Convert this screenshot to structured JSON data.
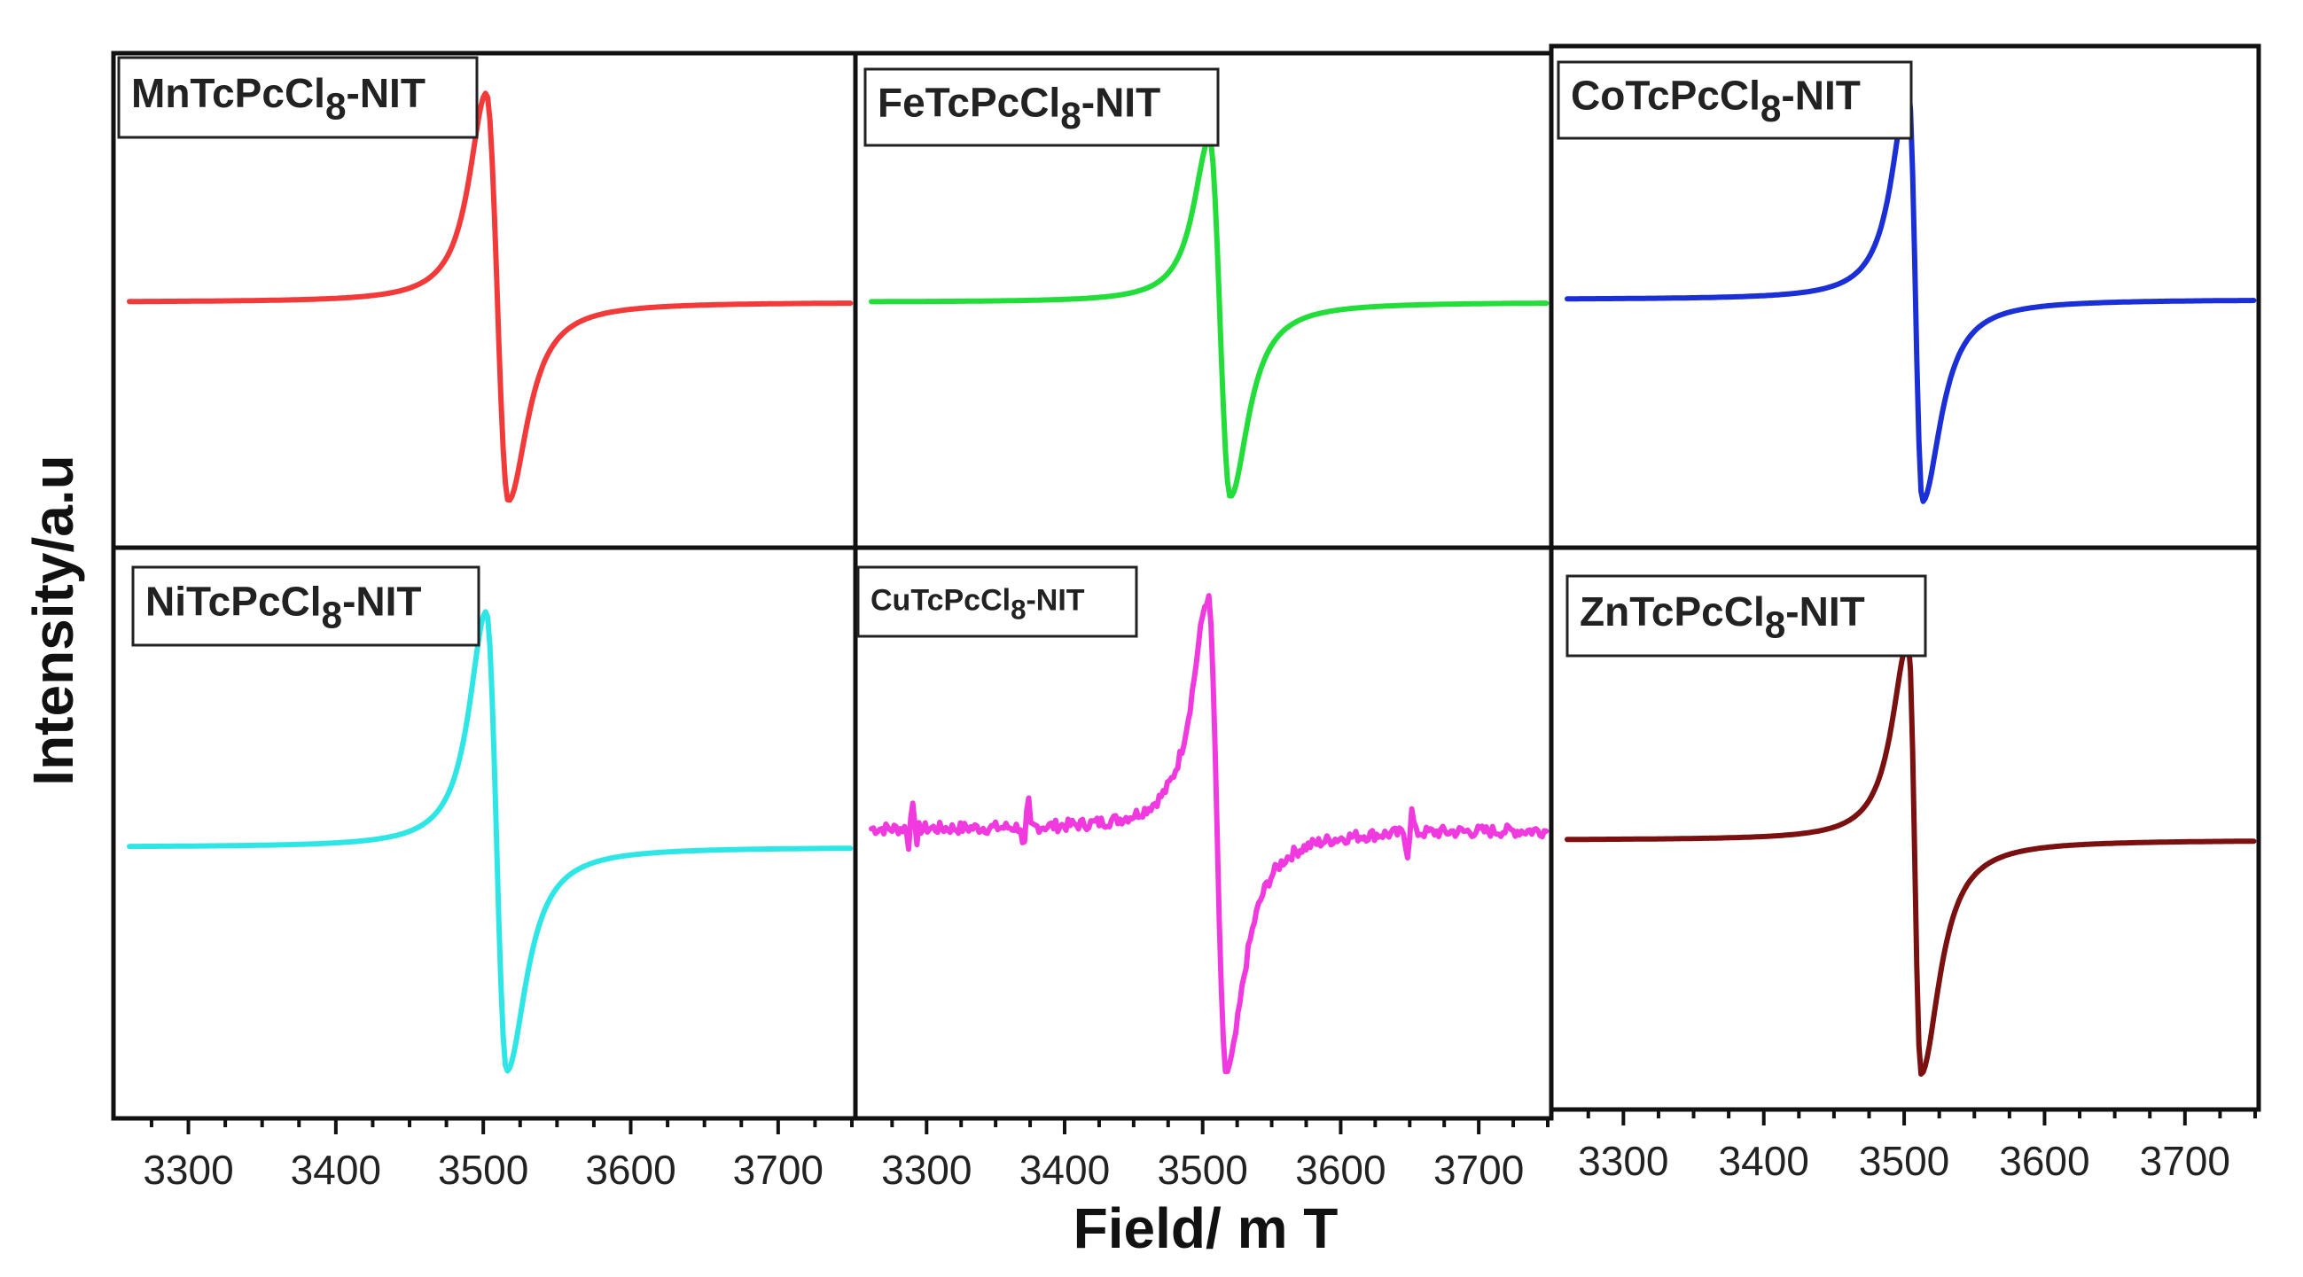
{
  "chart_data": {
    "type": "line",
    "xlabel": "Field/ m T",
    "ylabel": "Intensity/a.u",
    "xlim": [
      3260,
      3750
    ],
    "x_ticks": [
      3300,
      3400,
      3500,
      3600,
      3700
    ],
    "x_tick_labels": [
      "3300",
      "3400",
      "3500",
      "3600",
      "3700"
    ],
    "legend_placement": "top-left in each panel",
    "panels": [
      {
        "name": "Mn",
        "label_main": "MnTcPcCl",
        "label_sub": "8",
        "label_suffix": "-NIT",
        "color": "#f23a3a",
        "baseline": 0,
        "peak_field": 3502,
        "peak_value": 1.0,
        "trough_field": 3517,
        "trough_value": -0.95,
        "noise": false
      },
      {
        "name": "Fe",
        "label_main": "FeTcPcCl",
        "label_sub": "8",
        "label_suffix": "-NIT",
        "color": "#22dd3a",
        "baseline": 0,
        "peak_field": 3505,
        "peak_value": 0.78,
        "trough_field": 3520,
        "trough_value": -0.93,
        "noise": false
      },
      {
        "name": "Co",
        "label_main": "CoTcPcCl",
        "label_sub": "8",
        "label_suffix": "-NIT",
        "color": "#1a2fd6",
        "baseline": 0,
        "peak_field": 3503,
        "peak_value": 1.0,
        "trough_field": 3513,
        "trough_value": -0.95,
        "noise": false
      },
      {
        "name": "Ni",
        "label_main": "NiTcPcCl",
        "label_sub": "8",
        "label_suffix": "-NIT",
        "color": "#2ee6e6",
        "baseline": 0,
        "peak_field": 3502,
        "peak_value": 1.0,
        "trough_field": 3516,
        "trough_value": -0.95,
        "noise": false
      },
      {
        "name": "Cu",
        "label_main": "CuTcPcCl",
        "label_sub": "8",
        "label_suffix": "-NIT",
        "color": "#f03ae0",
        "baseline": 0,
        "peak_field": 3504,
        "peak_value": 0.95,
        "trough_field": 3517,
        "trough_value": -1.0,
        "noise": true
      },
      {
        "name": "Zn",
        "label_main": "ZnTcPcCl",
        "label_sub": "8",
        "label_suffix": "-NIT",
        "color": "#7a1010",
        "baseline": 0,
        "peak_field": 3503,
        "peak_value": 0.85,
        "trough_field": 3512,
        "trough_value": -1.0,
        "noise": false
      }
    ]
  }
}
